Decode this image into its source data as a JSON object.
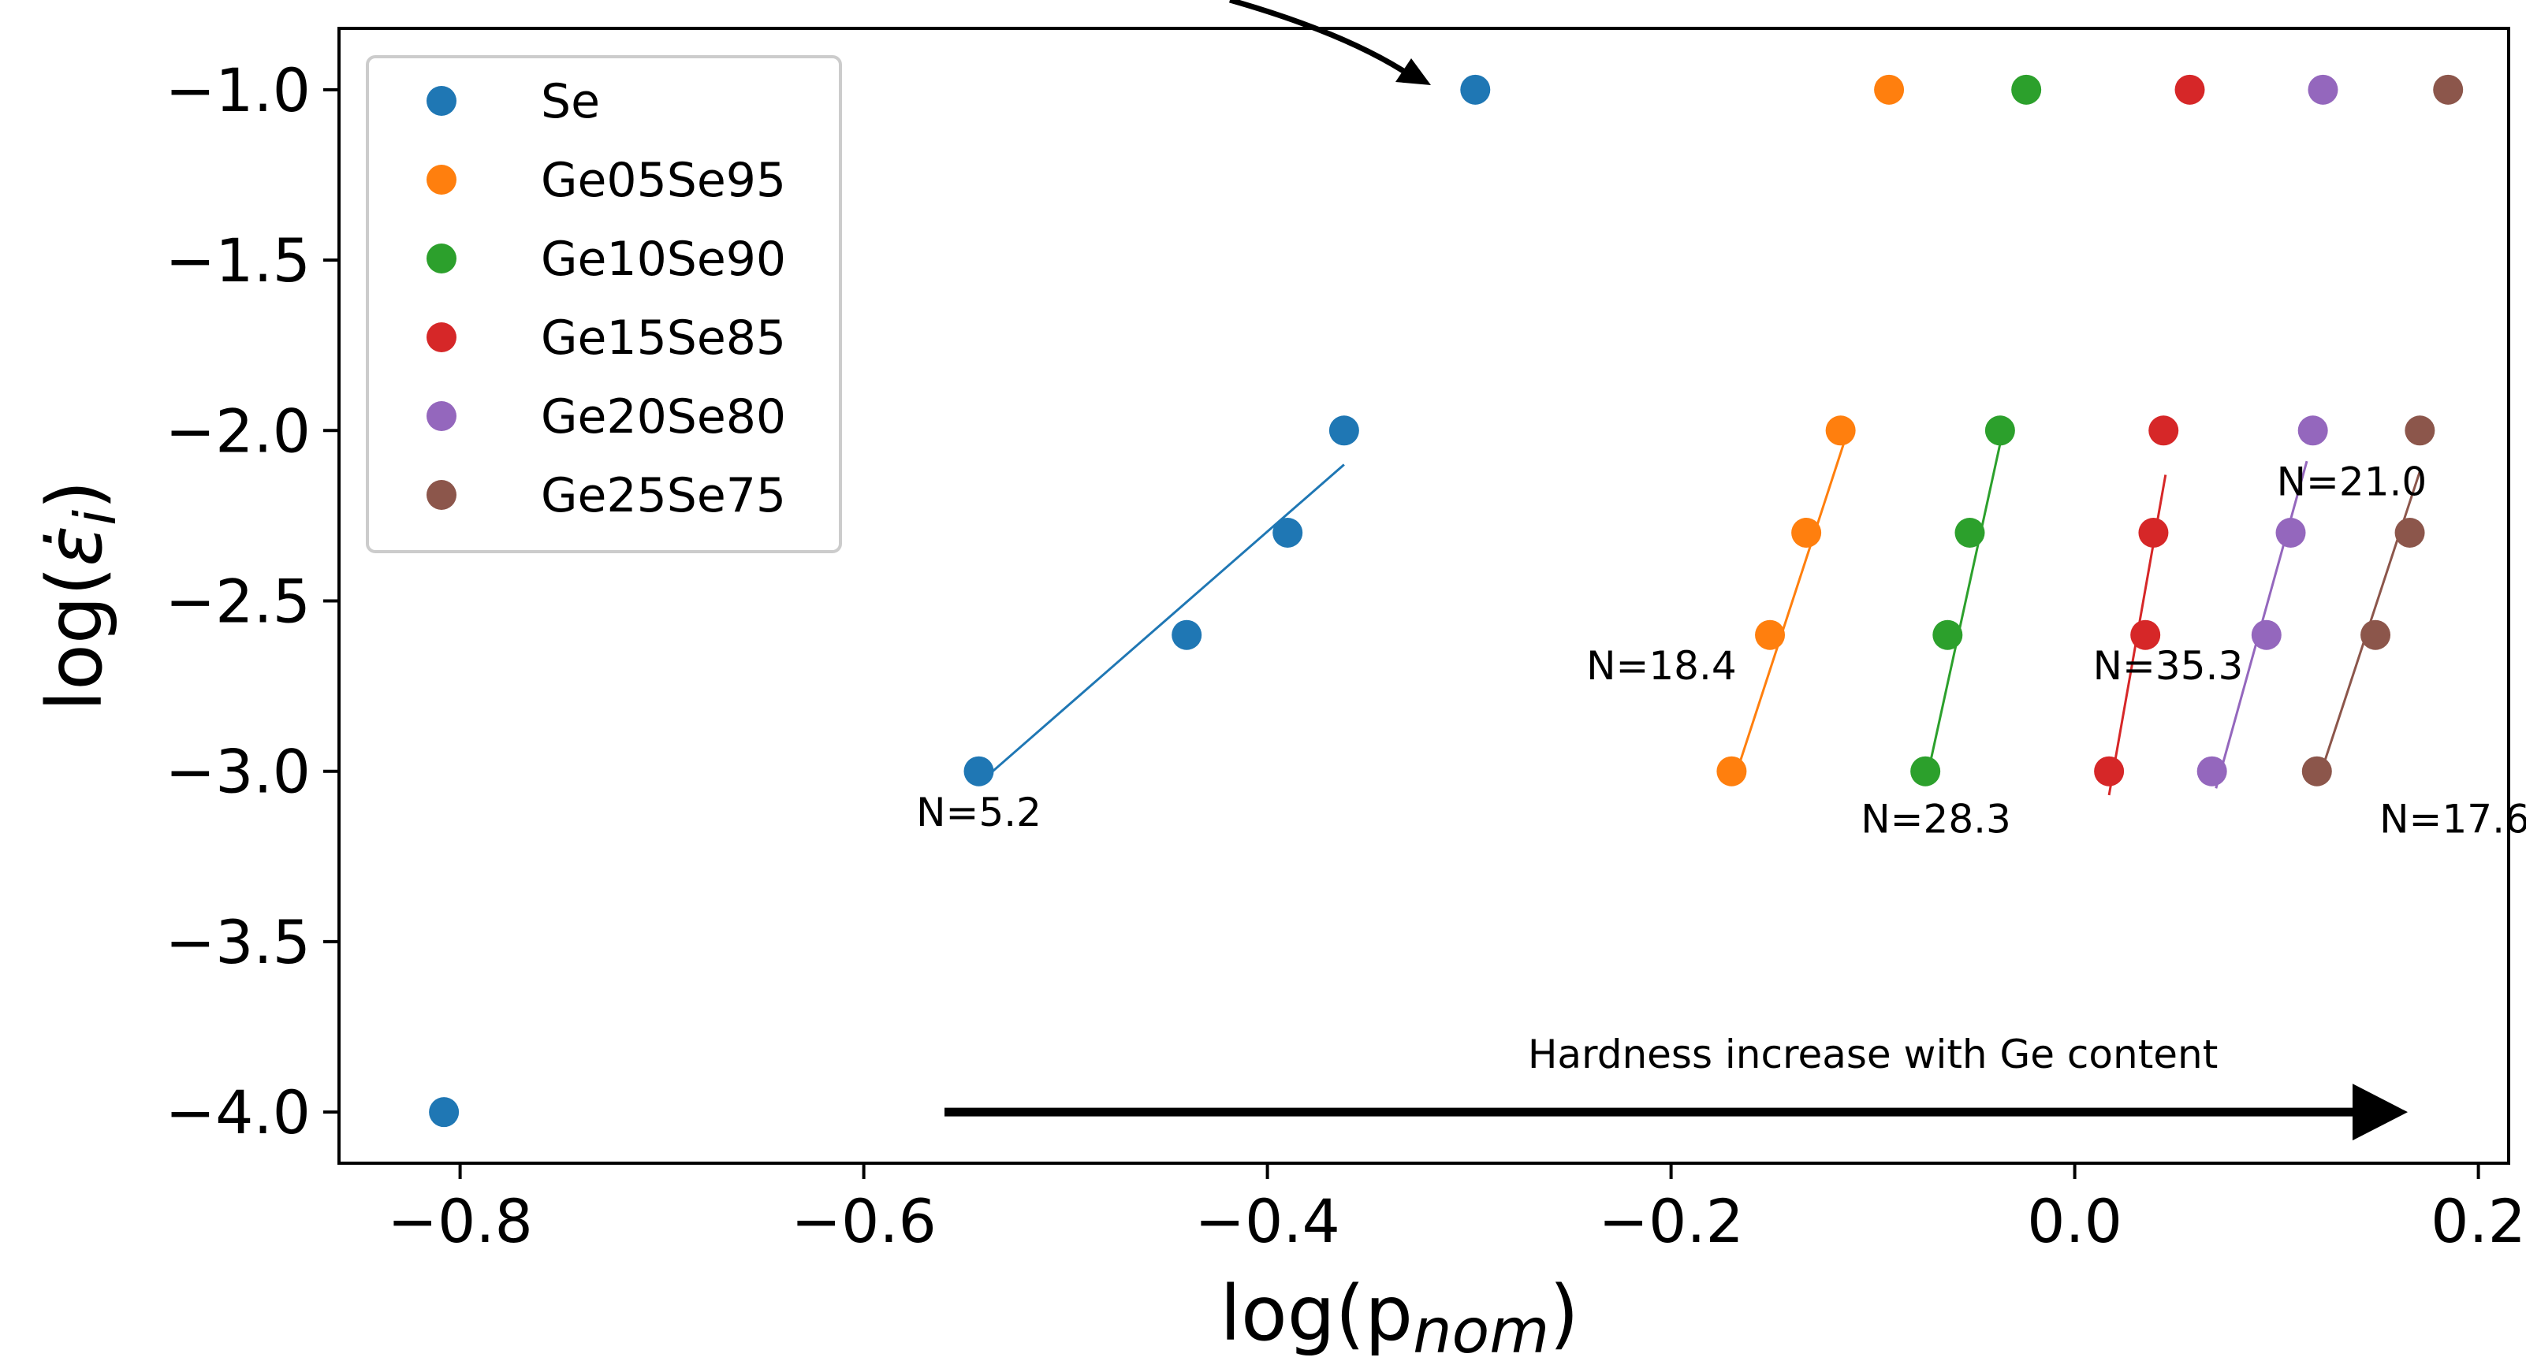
{
  "chart_data": {
    "type": "scatter",
    "xlabel": "log(p",
    "xlabel_sub": "nom",
    "xlabel_close": ")",
    "ylabel": "log(",
    "ylabel_symbol": "ε̇",
    "ylabel_sub": "i",
    "ylabel_close": ")",
    "xlim": [
      -0.86,
      0.215
    ],
    "ylim": [
      -4.15,
      -0.82
    ],
    "xticks": [
      -0.8,
      -0.6,
      -0.4,
      -0.2,
      0.0,
      0.2
    ],
    "xtick_labels": [
      "−0.8",
      "−0.6",
      "−0.4",
      "−0.2",
      "0.0",
      "0.2"
    ],
    "yticks": [
      -1.0,
      -1.5,
      -2.0,
      -2.5,
      -3.0,
      -3.5,
      -4.0
    ],
    "ytick_labels": [
      "−1.0",
      "−1.5",
      "−2.0",
      "−2.5",
      "−3.0",
      "−3.5",
      "−4.0"
    ],
    "grid": false,
    "legend_position": "top-left",
    "series": [
      {
        "name": "Se",
        "color": "#1f77b4",
        "x": [
          -0.808,
          -0.543,
          -0.44,
          -0.39,
          -0.362,
          -0.297
        ],
        "y": [
          -4.0,
          -3.0,
          -2.6,
          -2.3,
          -2.0,
          -1.0
        ],
        "fit": {
          "x": [
            -0.54,
            -0.362
          ],
          "y": [
            -3.02,
            -2.1
          ]
        }
      },
      {
        "name": "Ge05Se95",
        "color": "#ff7f0e",
        "x": [
          -0.17,
          -0.151,
          -0.133,
          -0.116,
          -0.092
        ],
        "y": [
          -3.0,
          -2.6,
          -2.3,
          -2.0,
          -1.0
        ],
        "fit": {
          "x": [
            -0.169,
            -0.114
          ],
          "y": [
            -3.03,
            -2.03
          ]
        }
      },
      {
        "name": "Ge10Se90",
        "color": "#2ca02c",
        "x": [
          -0.074,
          -0.063,
          -0.052,
          -0.037,
          -0.024
        ],
        "y": [
          -3.0,
          -2.6,
          -2.3,
          -2.0,
          -1.0
        ],
        "fit": {
          "x": [
            -0.074,
            -0.037
          ],
          "y": [
            -3.04,
            -2.04
          ]
        }
      },
      {
        "name": "Ge15Se85",
        "color": "#d62728",
        "x": [
          0.017,
          0.035,
          0.039,
          0.044,
          0.057
        ],
        "y": [
          -3.0,
          -2.6,
          -2.3,
          -2.0,
          -1.0
        ],
        "fit": {
          "x": [
            0.017,
            0.045
          ],
          "y": [
            -3.07,
            -2.13
          ]
        }
      },
      {
        "name": "Ge20Se80",
        "color": "#9467bd",
        "x": [
          0.068,
          0.095,
          0.107,
          0.118,
          0.123
        ],
        "y": [
          -3.0,
          -2.6,
          -2.3,
          -2.0,
          -1.0
        ],
        "fit": {
          "x": [
            0.07,
            0.115
          ],
          "y": [
            -3.05,
            -2.09
          ]
        }
      },
      {
        "name": "Ge25Se75",
        "color": "#8c564b",
        "x": [
          0.12,
          0.149,
          0.166,
          0.171,
          0.185
        ],
        "y": [
          -3.0,
          -2.6,
          -2.3,
          -2.0,
          -1.0
        ],
        "fit": {
          "x": [
            0.12,
            0.171
          ],
          "y": [
            -3.04,
            -2.12
          ]
        }
      }
    ],
    "annotations": [
      {
        "text": "N=5.2",
        "x": -0.574,
        "y": -3.16
      },
      {
        "text": "N=18.4",
        "x": -0.242,
        "y": -2.73
      },
      {
        "text": "N=28.3",
        "x": -0.106,
        "y": -3.18
      },
      {
        "text": "N=35.3",
        "x": 0.009,
        "y": -2.73
      },
      {
        "text": "N=21.0",
        "x": 0.1,
        "y": -2.19
      },
      {
        "text": "N=17.6",
        "x": 0.151,
        "y": -3.18
      }
    ],
    "arrow_note": {
      "text": "Hardness increase with Ge content",
      "x": -0.1,
      "y": -3.87,
      "from_x": -0.56,
      "to_x": 0.165,
      "y_arrow": -4.0
    }
  }
}
